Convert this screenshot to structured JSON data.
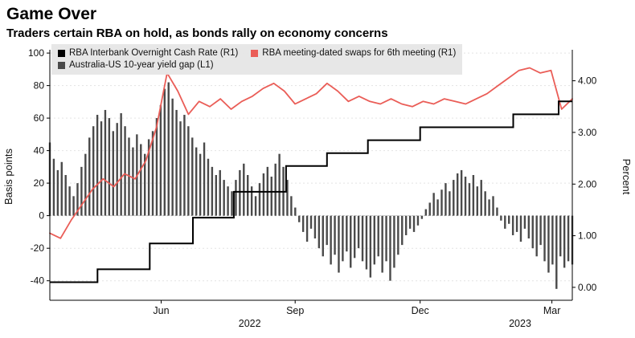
{
  "header": {
    "title": "Game Over",
    "subtitle": "Traders certain RBA on hold, as bonds rally on economy concerns"
  },
  "chart_data": {
    "type": "mixed",
    "subtypes": [
      "bar",
      "line",
      "step-line"
    ],
    "title": "Game Over",
    "subtitle": "Traders certain RBA on hold, as bonds rally on economy concerns",
    "grid": true,
    "legend_position": "top-left",
    "x_axis": {
      "unit": "months since 2022-04-01",
      "range": [
        0,
        11.5
      ],
      "month_ticks": [
        {
          "label": "Jun",
          "pos": 2.45
        },
        {
          "label": "Sep",
          "pos": 5.4
        },
        {
          "label": "Dec",
          "pos": 8.15
        },
        {
          "label": "Mar",
          "pos": 11.05
        }
      ],
      "year_ticks": [
        {
          "label": "2022",
          "pos": 4.4
        },
        {
          "label": "2023",
          "pos": 10.35
        }
      ]
    },
    "left_axis": {
      "label": "Basis points",
      "range": [
        -52,
        102
      ],
      "ticks": [
        -40,
        -20,
        0,
        20,
        40,
        60,
        80,
        100
      ],
      "decimals": 0
    },
    "right_axis": {
      "label": "Percent",
      "range": [
        -0.25,
        4.6
      ],
      "ticks": [
        0,
        1,
        2,
        3,
        4
      ],
      "decimals": 2
    },
    "series": [
      {
        "name": "RBA Interbank Overnight Cash Rate (R1)",
        "type": "step-line",
        "axis": "right",
        "color": "#000000",
        "points": [
          [
            0,
            0.1
          ],
          [
            1.05,
            0.35
          ],
          [
            2.2,
            0.85
          ],
          [
            3.15,
            1.35
          ],
          [
            4.05,
            1.85
          ],
          [
            5.2,
            2.35
          ],
          [
            6.1,
            2.6
          ],
          [
            7.0,
            2.85
          ],
          [
            8.15,
            3.1
          ],
          [
            10.2,
            3.35
          ],
          [
            11.2,
            3.6
          ]
        ]
      },
      {
        "name": "RBA meeting-dated swaps for 6th meeting (R1)",
        "type": "line",
        "axis": "right",
        "color": "#ea5d57",
        "x_range": [
          0,
          11.5
        ],
        "values": [
          1.05,
          0.95,
          1.3,
          1.6,
          1.9,
          2.1,
          1.95,
          2.2,
          2.1,
          2.45,
          3.1,
          4.15,
          3.8,
          3.35,
          3.6,
          3.5,
          3.65,
          3.45,
          3.6,
          3.7,
          3.85,
          3.95,
          3.8,
          3.55,
          3.65,
          3.75,
          3.95,
          3.8,
          3.6,
          3.7,
          3.6,
          3.55,
          3.65,
          3.55,
          3.5,
          3.6,
          3.55,
          3.65,
          3.6,
          3.55,
          3.65,
          3.75,
          3.9,
          4.05,
          4.2,
          4.25,
          4.15,
          4.2,
          3.45,
          3.65
        ]
      },
      {
        "name": "Australia-US 10-year yield gap (L1)",
        "type": "bar",
        "axis": "left",
        "color": "#4a4a4a",
        "x_range": [
          0,
          11.5
        ],
        "values": [
          45,
          35,
          28,
          33,
          25,
          18,
          12,
          20,
          30,
          38,
          48,
          55,
          62,
          58,
          65,
          60,
          52,
          57,
          63,
          55,
          48,
          42,
          50,
          44,
          38,
          47,
          52,
          60,
          68,
          78,
          82,
          72,
          65,
          58,
          62,
          55,
          48,
          42,
          38,
          45,
          35,
          30,
          25,
          28,
          22,
          18,
          15,
          22,
          28,
          32,
          25,
          18,
          12,
          20,
          26,
          30,
          24,
          32,
          38,
          30,
          22,
          12,
          5,
          -4,
          -10,
          -16,
          -8,
          -14,
          -20,
          -25,
          -18,
          -30,
          -24,
          -35,
          -28,
          -22,
          -32,
          -26,
          -20,
          -28,
          -33,
          -38,
          -30,
          -25,
          -35,
          -28,
          -40,
          -32,
          -24,
          -18,
          -12,
          -8,
          -10,
          -6,
          -2,
          4,
          8,
          14,
          10,
          16,
          20,
          15,
          22,
          26,
          28,
          24,
          20,
          25,
          18,
          22,
          15,
          10,
          12,
          5,
          -3,
          -8,
          -5,
          -12,
          -10,
          -16,
          -8,
          -14,
          -20,
          -25,
          -18,
          -28,
          -35,
          -30,
          -45,
          -25,
          -32,
          -28,
          -30
        ]
      }
    ]
  }
}
